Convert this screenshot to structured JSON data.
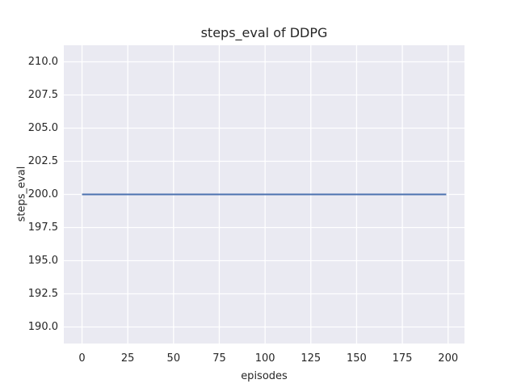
{
  "chart_data": {
    "type": "line",
    "title": "steps_eval of DDPG",
    "xlabel": "episodes",
    "ylabel": "steps_eval",
    "style": "seaborn-darkgrid",
    "grid": true,
    "legend": false,
    "xlim": [
      -9.95,
      208.95
    ],
    "ylim": [
      188.75,
      211.25
    ],
    "xticks": [
      0,
      25,
      50,
      75,
      100,
      125,
      150,
      175,
      200
    ],
    "xtick_labels": [
      "0",
      "25",
      "50",
      "75",
      "100",
      "125",
      "150",
      "175",
      "200"
    ],
    "yticks": [
      190.0,
      192.5,
      195.0,
      197.5,
      200.0,
      202.5,
      205.0,
      207.5,
      210.0
    ],
    "ytick_labels": [
      "190.0",
      "192.5",
      "195.0",
      "197.5",
      "200.0",
      "202.5",
      "205.0",
      "207.5",
      "210.0"
    ],
    "series": [
      {
        "name": "steps_eval",
        "color": "#4c72b0",
        "x": [
          0,
          199
        ],
        "y": [
          200.0,
          200.0
        ],
        "description": "constant value 200.0 across episodes 0 to 199"
      }
    ],
    "colors": {
      "figure_background": "#ffffff",
      "plot_background": "#eaeaf2",
      "gridline": "#ffffff",
      "line": "#4c72b0",
      "text": "#262626"
    }
  }
}
